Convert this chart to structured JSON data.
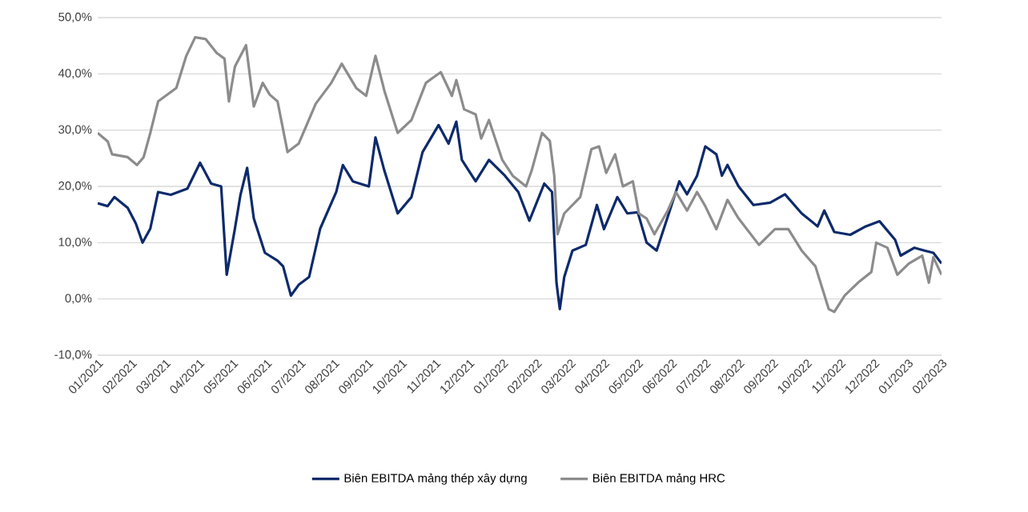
{
  "chart_data": {
    "type": "line",
    "ylim": [
      -10,
      50
    ],
    "yticks": [
      {
        "value": -10,
        "label": "-10,0%"
      },
      {
        "value": 0,
        "label": "0,0%"
      },
      {
        "value": 10,
        "label": "10,0%"
      },
      {
        "value": 20,
        "label": "20,0%"
      },
      {
        "value": 30,
        "label": "30,0%"
      },
      {
        "value": 40,
        "label": "40,0%"
      },
      {
        "value": 50,
        "label": "50,0%"
      }
    ],
    "xlim": [
      "2021-01-01",
      "2023-02-01"
    ],
    "xticks": [
      {
        "value": "2021-01",
        "label": "01/2021"
      },
      {
        "value": "2021-02",
        "label": "02/2021"
      },
      {
        "value": "2021-03",
        "label": "03/2021"
      },
      {
        "value": "2021-04",
        "label": "04/2021"
      },
      {
        "value": "2021-05",
        "label": "05/2021"
      },
      {
        "value": "2021-06",
        "label": "06/2021"
      },
      {
        "value": "2021-07",
        "label": "07/2021"
      },
      {
        "value": "2021-08",
        "label": "08/2021"
      },
      {
        "value": "2021-09",
        "label": "09/2021"
      },
      {
        "value": "2021-10",
        "label": "10/2021"
      },
      {
        "value": "2021-11",
        "label": "11/2021"
      },
      {
        "value": "2021-12",
        "label": "12/2021"
      },
      {
        "value": "2022-01",
        "label": "01/2022"
      },
      {
        "value": "2022-02",
        "label": "02/2022"
      },
      {
        "value": "2022-03",
        "label": "03/2022"
      },
      {
        "value": "2022-04",
        "label": "04/2022"
      },
      {
        "value": "2022-05",
        "label": "05/2022"
      },
      {
        "value": "2022-06",
        "label": "06/2022"
      },
      {
        "value": "2022-07",
        "label": "07/2022"
      },
      {
        "value": "2022-08",
        "label": "08/2022"
      },
      {
        "value": "2022-09",
        "label": "09/2022"
      },
      {
        "value": "2022-10",
        "label": "10/2022"
      },
      {
        "value": "2022-11",
        "label": "11/2022"
      },
      {
        "value": "2022-12",
        "label": "12/2022"
      },
      {
        "value": "2023-01",
        "label": "01/2023"
      },
      {
        "value": "2023-02",
        "label": "02/2023"
      }
    ],
    "grid": "y",
    "legend": "bottom",
    "marker": "none",
    "line_style": "solid",
    "series": [
      {
        "name": "Biên EBITDA mảng thép xây dựng",
        "color": "#0d2a6b",
        "x": [
          "2021-01-01",
          "2021-01-10",
          "2021-01-16",
          "2021-01-28",
          "2021-02-05",
          "2021-02-11",
          "2021-02-18",
          "2021-02-25",
          "2021-03-06",
          "2021-03-21",
          "2021-04-02",
          "2021-04-12",
          "2021-04-21",
          "2021-04-26",
          "2021-05-03",
          "2021-05-08",
          "2021-05-14",
          "2021-05-20",
          "2021-05-30",
          "2021-06-11",
          "2021-06-16",
          "2021-06-23",
          "2021-06-30",
          "2021-07-09",
          "2021-07-19",
          "2021-08-03",
          "2021-08-09",
          "2021-08-18",
          "2021-09-02",
          "2021-09-08",
          "2021-09-16",
          "2021-09-28",
          "2021-10-10",
          "2021-10-20",
          "2021-11-04",
          "2021-11-13",
          "2021-11-20",
          "2021-11-25",
          "2021-12-07",
          "2021-12-19",
          "2022-01-03",
          "2022-01-15",
          "2022-01-25",
          "2022-02-08",
          "2022-02-15",
          "2022-02-19",
          "2022-02-22",
          "2022-02-26",
          "2022-03-03",
          "2022-03-15",
          "2022-03-25",
          "2022-04-01",
          "2022-04-13",
          "2022-04-22",
          "2022-05-01",
          "2022-05-09",
          "2022-05-18",
          "2022-05-29",
          "2022-06-08",
          "2022-06-15",
          "2022-06-24",
          "2022-07-01",
          "2022-07-11",
          "2022-07-16",
          "2022-07-21",
          "2022-07-31",
          "2022-08-14",
          "2022-08-29",
          "2022-09-12",
          "2022-09-27",
          "2022-10-11",
          "2022-10-17",
          "2022-10-26",
          "2022-11-10",
          "2022-11-24",
          "2022-12-06",
          "2022-12-20",
          "2022-12-25",
          "2023-01-07",
          "2023-01-16",
          "2023-01-24",
          "2023-02-01"
        ],
        "values": [
          17.0,
          16.5,
          18.1,
          16.2,
          13.4,
          10.0,
          12.5,
          19.0,
          18.5,
          19.6,
          24.2,
          20.5,
          20.0,
          4.3,
          12.5,
          18.5,
          23.3,
          14.3,
          8.2,
          6.8,
          5.8,
          0.6,
          2.5,
          3.9,
          12.5,
          19.0,
          23.8,
          20.9,
          20.0,
          28.7,
          22.8,
          15.2,
          18.1,
          26.1,
          30.9,
          27.6,
          31.5,
          24.7,
          20.9,
          24.7,
          21.9,
          19.0,
          13.9,
          20.5,
          19.0,
          2.9,
          -1.8,
          3.9,
          8.6,
          9.6,
          16.7,
          12.4,
          18.1,
          15.2,
          15.4,
          10.0,
          8.6,
          15.2,
          20.9,
          18.6,
          21.9,
          27.1,
          25.7,
          21.9,
          23.8,
          20.0,
          16.7,
          17.1,
          18.6,
          15.2,
          12.9,
          15.7,
          11.9,
          11.4,
          12.9,
          13.8,
          10.5,
          7.7,
          9.1,
          8.6,
          8.2,
          6.3
        ]
      },
      {
        "name": "Biên EBITDA mảng HRC",
        "color": "#8c8c8c",
        "x": [
          "2021-01-01",
          "2021-01-10",
          "2021-01-14",
          "2021-01-28",
          "2021-02-06",
          "2021-02-12",
          "2021-02-18",
          "2021-02-25",
          "2021-03-11",
          "2021-03-20",
          "2021-03-28",
          "2021-04-07",
          "2021-04-17",
          "2021-04-24",
          "2021-04-28",
          "2021-05-03",
          "2021-05-13",
          "2021-05-20",
          "2021-05-28",
          "2021-06-04",
          "2021-06-11",
          "2021-06-20",
          "2021-06-30",
          "2021-07-15",
          "2021-07-29",
          "2021-08-08",
          "2021-08-21",
          "2021-08-30",
          "2021-09-08",
          "2021-09-16",
          "2021-09-28",
          "2021-10-10",
          "2021-10-23",
          "2021-10-30",
          "2021-11-06",
          "2021-11-16",
          "2021-11-20",
          "2021-11-27",
          "2021-12-07",
          "2021-12-12",
          "2021-12-19",
          "2021-12-31",
          "2022-01-10",
          "2022-01-22",
          "2022-01-27",
          "2022-02-06",
          "2022-02-13",
          "2022-02-17",
          "2022-02-20",
          "2022-02-26",
          "2022-03-10",
          "2022-03-20",
          "2022-03-27",
          "2022-04-03",
          "2022-04-11",
          "2022-04-18",
          "2022-04-27",
          "2022-05-02",
          "2022-05-09",
          "2022-05-16",
          "2022-05-28",
          "2022-06-05",
          "2022-06-15",
          "2022-06-24",
          "2022-07-01",
          "2022-07-11",
          "2022-07-21",
          "2022-07-31",
          "2022-08-19",
          "2022-09-03",
          "2022-09-15",
          "2022-09-27",
          "2022-10-09",
          "2022-10-21",
          "2022-10-26",
          "2022-11-05",
          "2022-11-17",
          "2022-11-29",
          "2022-12-03",
          "2022-12-13",
          "2022-12-22",
          "2023-01-02",
          "2023-01-14",
          "2023-01-20",
          "2023-01-24",
          "2023-02-01"
        ],
        "values": [
          29.5,
          28.0,
          25.7,
          25.2,
          23.8,
          25.2,
          29.5,
          35.1,
          37.5,
          43.2,
          46.5,
          46.2,
          43.7,
          42.7,
          35.1,
          41.3,
          45.1,
          34.2,
          38.4,
          36.3,
          35.1,
          26.1,
          27.6,
          34.7,
          38.4,
          41.8,
          37.5,
          36.1,
          43.2,
          37.0,
          29.5,
          31.8,
          38.4,
          39.4,
          40.3,
          36.1,
          38.9,
          33.7,
          32.8,
          28.5,
          31.8,
          24.7,
          21.9,
          20.0,
          22.8,
          29.5,
          28.1,
          21.9,
          11.5,
          15.2,
          18.1,
          26.6,
          27.1,
          22.4,
          25.7,
          20.0,
          20.9,
          15.2,
          14.3,
          11.5,
          15.7,
          19.0,
          15.7,
          19.0,
          16.5,
          12.4,
          17.6,
          14.3,
          9.6,
          12.4,
          12.4,
          8.6,
          5.8,
          -1.8,
          -2.3,
          0.6,
          2.9,
          4.8,
          10.0,
          9.1,
          4.3,
          6.3,
          7.7,
          2.9,
          7.4,
          4.3
        ]
      }
    ]
  }
}
